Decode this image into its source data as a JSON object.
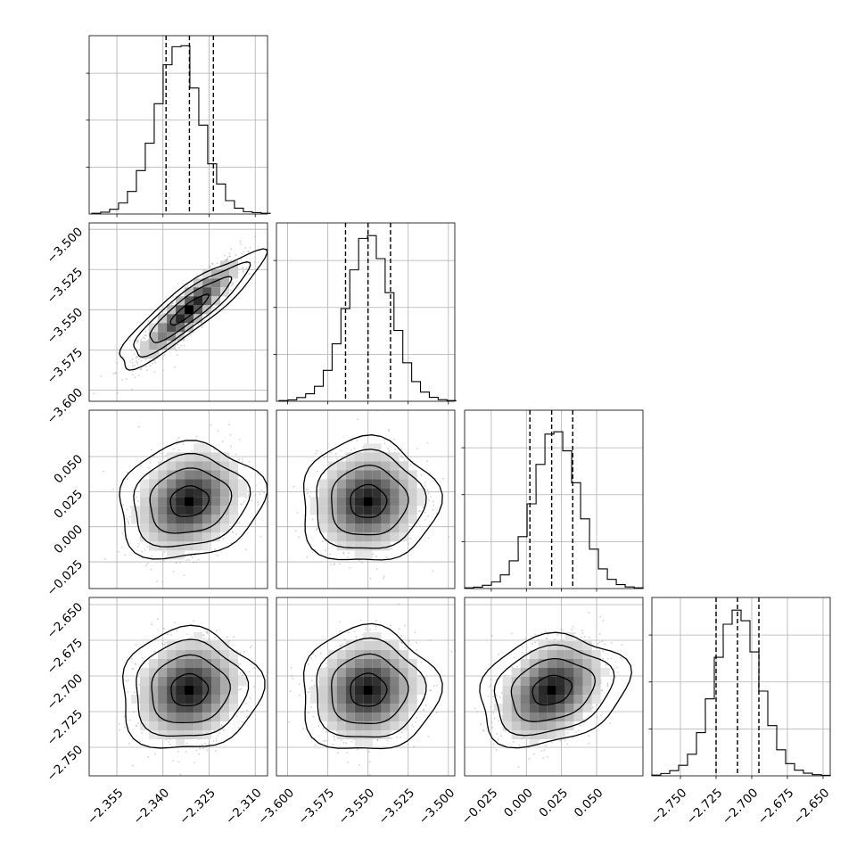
{
  "chart_data": {
    "type": "corner",
    "grid": true,
    "parameters": [
      {
        "range": [
          -2.364,
          -2.306
        ],
        "ticks": [
          -2.355,
          -2.34,
          -2.325,
          -2.31
        ],
        "tick_labels": [
          "−2.355",
          "−2.340",
          "−2.325",
          "−2.310"
        ],
        "quantiles": [
          -2.339,
          -2.3314,
          -2.3236
        ],
        "hist_bins": [
          -2.3617,
          -2.3588,
          -2.3559,
          -2.353,
          -2.3501,
          -2.3472,
          -2.3443,
          -2.3414,
          -2.3385,
          -2.3356,
          -2.3327,
          -2.3298,
          -2.3269,
          -2.324,
          -2.3211,
          -2.3182,
          -2.3153,
          -2.3124,
          -2.3095,
          -2.3066
        ],
        "hist_counts": [
          3,
          8,
          20,
          47,
          96,
          185,
          302,
          470,
          636,
          713,
          717,
          537,
          379,
          214,
          128,
          57,
          25,
          10,
          6,
          3
        ],
        "hist_yticks": [
          200,
          400,
          600
        ],
        "hist_max": 760
      },
      {
        "range": [
          -3.607,
          -3.496
        ],
        "ticks": [
          -3.6,
          -3.575,
          -3.55,
          -3.525,
          -3.5
        ],
        "tick_labels": [
          "−3.600",
          "−3.575",
          "−3.550",
          "−3.525",
          "−3.500"
        ],
        "quantiles": [
          -3.564,
          -3.55,
          -3.536
        ],
        "hist_bins": [
          -3.6026,
          -3.5971,
          -3.5916,
          -3.5861,
          -3.5806,
          -3.5751,
          -3.5696,
          -3.5641,
          -3.5586,
          -3.5531,
          -3.5476,
          -3.5421,
          -3.5366,
          -3.5311,
          -3.5256,
          -3.5201,
          -3.5146,
          -3.5091,
          -3.5036,
          -3.4981
        ],
        "hist_counts": [
          3,
          6,
          16,
          32,
          64,
          132,
          245,
          395,
          560,
          694,
          706,
          608,
          463,
          302,
          164,
          84,
          39,
          17,
          7,
          3
        ],
        "hist_yticks": [
          200,
          400,
          600
        ],
        "hist_max": 760
      },
      {
        "range": [
          -0.044,
          0.083
        ],
        "ticks": [
          -0.025,
          0.0,
          0.025,
          0.05
        ],
        "tick_labels": [
          "−0.025",
          "0.000",
          "0.025",
          "0.050"
        ],
        "quantiles": [
          0.0025,
          0.018,
          0.033
        ],
        "hist_bins": [
          -0.0408,
          -0.0344,
          -0.0281,
          -0.0217,
          -0.0154,
          -0.009,
          -0.0027,
          0.0037,
          0.01,
          0.0164,
          0.0227,
          0.0291,
          0.0354,
          0.0418,
          0.0481,
          0.0545,
          0.0608,
          0.0672,
          0.0735,
          0.0799
        ],
        "hist_counts": [
          3,
          6,
          14,
          28,
          58,
          118,
          221,
          361,
          529,
          658,
          668,
          587,
          451,
          297,
          168,
          84,
          39,
          17,
          7,
          3
        ],
        "hist_yticks": [
          200,
          400,
          600
        ],
        "hist_max": 760
      },
      {
        "range": [
          -2.77,
          -2.645
        ],
        "ticks": [
          -2.75,
          -2.725,
          -2.7,
          -2.675,
          -2.65
        ],
        "tick_labels": [
          "−2.750",
          "−2.725",
          "−2.700",
          "−2.675",
          "−2.650"
        ],
        "quantiles": [
          -2.725,
          -2.71,
          -2.695
        ],
        "hist_bins": [
          -2.7669,
          -2.7606,
          -2.7544,
          -2.7481,
          -2.7419,
          -2.7356,
          -2.7294,
          -2.7231,
          -2.7169,
          -2.7106,
          -2.7044,
          -2.6981,
          -2.6919,
          -2.6856,
          -2.6794,
          -2.6731,
          -2.6669,
          -2.6606,
          -2.6544,
          -2.6481
        ],
        "hist_counts": [
          3,
          10,
          22,
          45,
          92,
          184,
          328,
          505,
          646,
          706,
          661,
          528,
          361,
          214,
          111,
          52,
          24,
          11,
          5,
          2
        ],
        "hist_yticks": [
          200,
          400,
          600
        ],
        "hist_max": 760
      }
    ],
    "pairs": [
      {
        "row": 1,
        "col": 0,
        "center": [
          -2.3315,
          -3.55
        ],
        "tilt": 0.9,
        "levels": [
          0.9,
          1.9,
          2.7,
          3.4
        ]
      },
      {
        "row": 2,
        "col": 0,
        "center": [
          -2.3315,
          0.018
        ],
        "tilt": 0.25,
        "levels": [
          0.9,
          1.9,
          2.7,
          3.4
        ]
      },
      {
        "row": 2,
        "col": 1,
        "center": [
          -3.55,
          0.018
        ],
        "tilt": 0.1,
        "levels": [
          0.9,
          1.9,
          2.7,
          3.4
        ]
      },
      {
        "row": 3,
        "col": 0,
        "center": [
          -2.3315,
          -2.71
        ],
        "tilt": 0.15,
        "levels": [
          0.9,
          1.9,
          2.7,
          3.4
        ]
      },
      {
        "row": 3,
        "col": 1,
        "center": [
          -3.55,
          -2.71
        ],
        "tilt": 0.1,
        "levels": [
          0.9,
          1.9,
          2.7,
          3.4
        ]
      },
      {
        "row": 3,
        "col": 2,
        "center": [
          0.018,
          -2.71
        ],
        "tilt": 0.35,
        "levels": [
          0.9,
          1.9,
          2.7,
          3.4
        ]
      }
    ]
  }
}
